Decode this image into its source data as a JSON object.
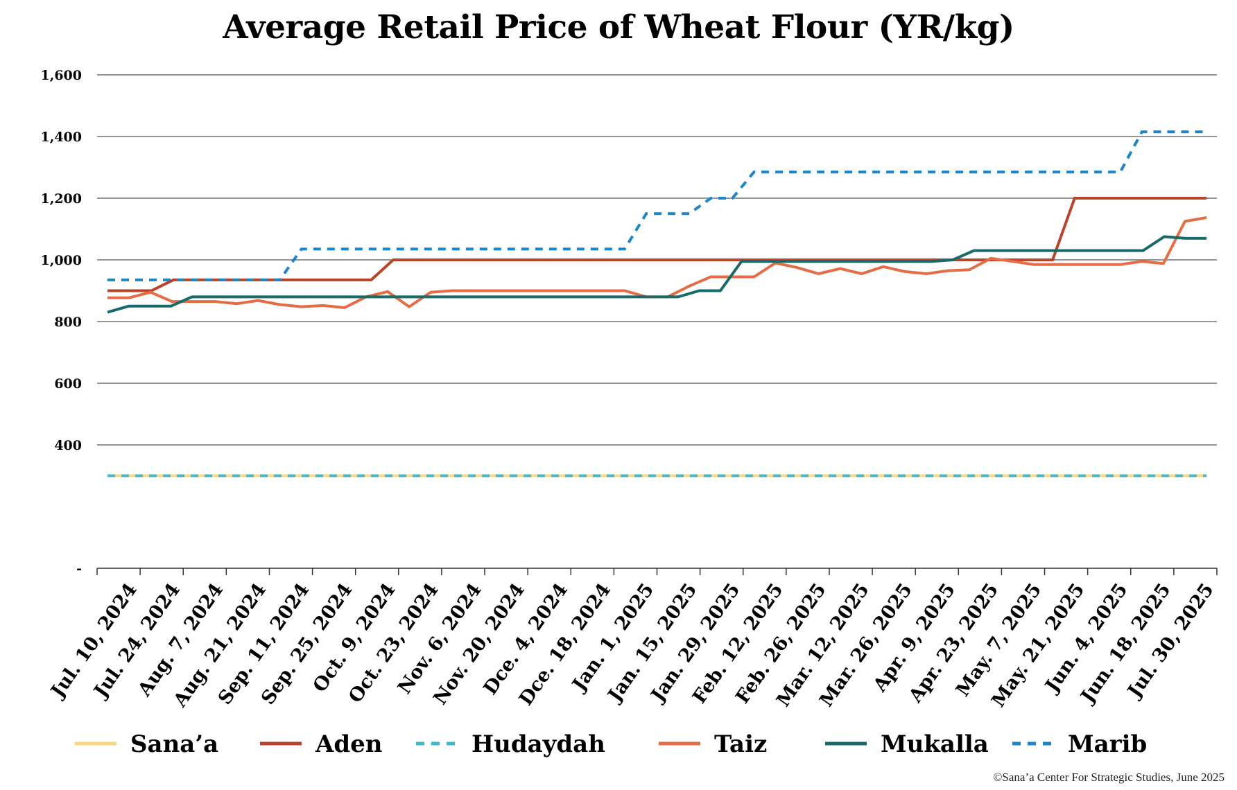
{
  "chart_data": {
    "type": "line",
    "title": "Average Retail Price of Wheat Flour (YR/kg)",
    "xlabel": "",
    "ylabel": "",
    "ylim": [
      0,
      1600
    ],
    "yticks": [
      {
        "value": 0,
        "label": "-"
      },
      {
        "value": 400,
        "label": "400"
      },
      {
        "value": 600,
        "label": "600"
      },
      {
        "value": 800,
        "label": "800"
      },
      {
        "value": 1000,
        "label": "1,000"
      },
      {
        "value": 1200,
        "label": "1,200"
      },
      {
        "value": 1400,
        "label": "1,400"
      },
      {
        "value": 1600,
        "label": "1,600"
      }
    ],
    "x_tick_labels": [
      "Jul. 10, 2024",
      "Jul. 24, 2024",
      "Aug. 7, 2024",
      "Aug. 21, 2024",
      "Sep. 11, 2024",
      "Sep. 25, 2024",
      "Oct. 9, 2024",
      "Oct. 23, 2024",
      "Nov. 6, 2024",
      "Nov. 20, 2024",
      "Dce. 4, 2024",
      "Dce. 18, 2024",
      "Jan. 1, 2025",
      "Jan. 15, 2025",
      "Jan. 29, 2025",
      "Feb. 12, 2025",
      "Feb. 26, 2025",
      "Mar. 12, 2025",
      "Mar. 26, 2025",
      "Apr. 9, 2025",
      "Apr. 23, 2025",
      "May. 7, 2025",
      "May. 21, 2025",
      "Jun. 4, 2025",
      "Jun. 18, 2025",
      "Jul. 30, 2025"
    ],
    "grid": true,
    "legend_position": "bottom",
    "series": [
      {
        "name": "Sana’a",
        "color": "#F9D77E",
        "dash": false,
        "values": [
          300,
          300,
          300,
          300,
          300,
          300,
          300,
          300,
          300,
          300,
          300,
          300,
          300,
          300,
          300,
          300,
          300,
          300,
          300,
          300,
          300,
          300,
          300,
          300,
          300,
          300,
          300,
          300,
          300,
          300,
          300,
          300,
          300,
          300,
          300,
          300,
          300,
          300,
          300,
          300,
          300,
          300,
          300,
          300,
          300,
          300,
          300,
          300,
          300,
          300,
          300
        ]
      },
      {
        "name": "Aden",
        "color": "#B8452A",
        "dash": false,
        "values": [
          900,
          900,
          900,
          935,
          935,
          935,
          935,
          935,
          935,
          935,
          935,
          935,
          935,
          1000,
          1000,
          1000,
          1000,
          1000,
          1000,
          1000,
          1000,
          1000,
          1000,
          1000,
          1000,
          1000,
          1000,
          1000,
          1000,
          1000,
          1000,
          1000,
          1000,
          1000,
          1000,
          1000,
          1000,
          1000,
          1000,
          1000,
          1000,
          1000,
          1000,
          1000,
          1200,
          1200,
          1200,
          1200,
          1200,
          1200,
          1200
        ]
      },
      {
        "name": "Hudaydah",
        "color": "#3BBCCB",
        "dash": true,
        "values": [
          300,
          300,
          300,
          300,
          300,
          300,
          300,
          300,
          300,
          300,
          300,
          300,
          300,
          300,
          300,
          300,
          300,
          300,
          300,
          300,
          300,
          300,
          300,
          300,
          300,
          300,
          300,
          300,
          300,
          300,
          300,
          300,
          300,
          300,
          300,
          300,
          300,
          300,
          300,
          300,
          300,
          300,
          300,
          300,
          300,
          300,
          300,
          300,
          300,
          300,
          300
        ]
      },
      {
        "name": "Taiz",
        "color": "#E56D45",
        "dash": false,
        "values": [
          877,
          877,
          895,
          865,
          865,
          865,
          858,
          868,
          855,
          848,
          852,
          845,
          880,
          897,
          848,
          895,
          900,
          900,
          900,
          900,
          900,
          900,
          900,
          900,
          900,
          880,
          880,
          915,
          945,
          945,
          945,
          990,
          975,
          955,
          972,
          955,
          978,
          962,
          955,
          965,
          968,
          1005,
          995,
          985,
          985,
          985,
          985,
          985,
          995,
          988,
          1125,
          1137
        ]
      },
      {
        "name": "Mukalla",
        "color": "#176A68",
        "dash": false,
        "values": [
          830,
          850,
          850,
          850,
          880,
          880,
          880,
          880,
          880,
          880,
          880,
          880,
          880,
          880,
          880,
          880,
          880,
          880,
          880,
          880,
          880,
          880,
          880,
          880,
          880,
          880,
          880,
          880,
          900,
          900,
          995,
          995,
          995,
          995,
          995,
          995,
          995,
          995,
          995,
          995,
          1000,
          1030,
          1030,
          1030,
          1030,
          1030,
          1030,
          1030,
          1030,
          1030,
          1075,
          1070,
          1070
        ]
      },
      {
        "name": "Marib",
        "color": "#1B86C8",
        "dash": true,
        "values": [
          935,
          935,
          935,
          935,
          935,
          935,
          935,
          935,
          935,
          1035,
          1035,
          1035,
          1035,
          1035,
          1035,
          1035,
          1035,
          1035,
          1035,
          1035,
          1035,
          1035,
          1035,
          1035,
          1035,
          1150,
          1150,
          1150,
          1200,
          1200,
          1285,
          1285,
          1285,
          1285,
          1285,
          1285,
          1285,
          1285,
          1285,
          1285,
          1285,
          1285,
          1285,
          1285,
          1285,
          1285,
          1285,
          1285,
          1415,
          1415,
          1415,
          1415
        ]
      }
    ]
  },
  "credit": "©Sana’a Center For Strategic Studies, June 2025"
}
